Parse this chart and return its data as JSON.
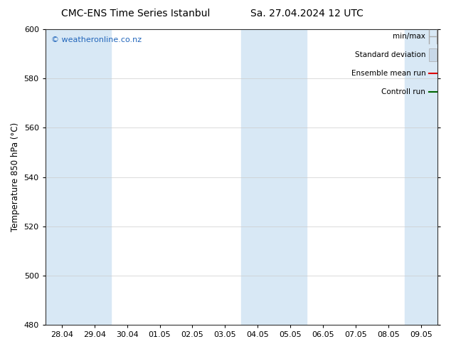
{
  "title_left": "CMC-ENS Time Series Istanbul",
  "title_right": "Sa. 27.04.2024 12 UTC",
  "ylabel": "Temperature 850 hPa (°C)",
  "ylim": [
    480,
    600
  ],
  "yticks": [
    480,
    500,
    520,
    540,
    560,
    580,
    600
  ],
  "xlabels": [
    "28.04",
    "29.04",
    "30.04",
    "01.05",
    "02.05",
    "03.05",
    "04.05",
    "05.05",
    "06.05",
    "07.05",
    "08.05",
    "09.05"
  ],
  "n_cols": 12,
  "shaded_cols": [
    0,
    1,
    6,
    7,
    11
  ],
  "shade_color": "#d8e8f5",
  "bg_color": "#ffffff",
  "legend_items": [
    "min/max",
    "Standard deviation",
    "Ensemble mean run",
    "Controll run"
  ],
  "minmax_color": "#aaaaaa",
  "stddev_facecolor": "#c8d8e8",
  "stddev_edgecolor": "#aaaaaa",
  "mean_color": "#dd0000",
  "ctrl_color": "#006600",
  "watermark": "© weatheronline.co.nz",
  "watermark_color": "#2266bb",
  "title_fontsize": 10,
  "axis_fontsize": 8,
  "legend_fontsize": 7.5,
  "watermark_fontsize": 8
}
